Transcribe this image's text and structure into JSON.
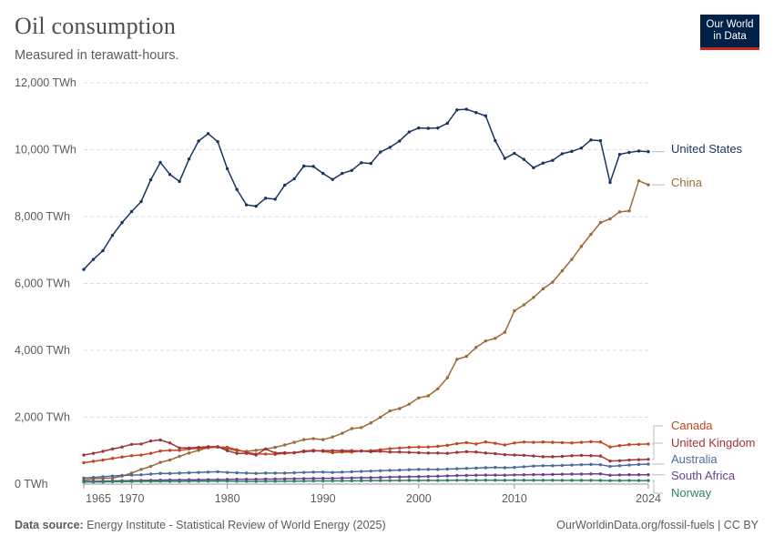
{
  "header": {
    "title": "Oil consumption",
    "subtitle": "Measured in terawatt-hours.",
    "logo_line1": "Our World",
    "logo_line2": "in Data"
  },
  "footer": {
    "source_label": "Data source:",
    "source_text": "Energy Institute - Statistical Review of World Energy (2025)",
    "url": "OurWorldinData.org/fossil-fuels | CC BY"
  },
  "chart_data": {
    "type": "line",
    "xlim": [
      1965,
      2024
    ],
    "ylim": [
      0,
      12000
    ],
    "x_ticks": [
      "1965",
      "1970",
      "1980",
      "1990",
      "2000",
      "2010",
      "2024"
    ],
    "y_ticks": [
      "0 TWh",
      "2,000 TWh",
      "4,000 TWh",
      "6,000 TWh",
      "8,000 TWh",
      "10,000 TWh",
      "12,000 TWh"
    ],
    "y_tick_values": [
      0,
      2000,
      4000,
      6000,
      8000,
      10000,
      12000
    ],
    "grid": true,
    "x": [
      1965,
      1966,
      1967,
      1968,
      1969,
      1970,
      1971,
      1972,
      1973,
      1974,
      1975,
      1976,
      1977,
      1978,
      1979,
      1980,
      1981,
      1982,
      1983,
      1984,
      1985,
      1986,
      1987,
      1988,
      1989,
      1990,
      1991,
      1992,
      1993,
      1994,
      1995,
      1996,
      1997,
      1998,
      1999,
      2000,
      2001,
      2002,
      2003,
      2004,
      2005,
      2006,
      2007,
      2008,
      2009,
      2010,
      2011,
      2012,
      2013,
      2014,
      2015,
      2016,
      2017,
      2018,
      2019,
      2020,
      2021,
      2022,
      2023,
      2024
    ],
    "series": [
      {
        "name": "United States",
        "color": "#18355e",
        "values": [
          6420,
          6720,
          6980,
          7440,
          7820,
          8150,
          8450,
          9100,
          9620,
          9260,
          9050,
          9720,
          10260,
          10480,
          10240,
          9430,
          8810,
          8350,
          8310,
          8550,
          8520,
          8940,
          9130,
          9510,
          9500,
          9290,
          9110,
          9290,
          9380,
          9610,
          9590,
          9930,
          10070,
          10260,
          10530,
          10650,
          10640,
          10650,
          10790,
          11190,
          11210,
          11110,
          11010,
          10270,
          9740,
          9890,
          9710,
          9460,
          9600,
          9680,
          9880,
          9950,
          10050,
          10290,
          10270,
          9020,
          9860,
          9920,
          9960,
          9940
        ]
      },
      {
        "name": "China",
        "color": "#9a6b35",
        "values": [
          120,
          160,
          170,
          180,
          240,
          330,
          440,
          530,
          650,
          720,
          830,
          930,
          1010,
          1090,
          1110,
          1060,
          1000,
          980,
          1010,
          1050,
          1100,
          1170,
          1250,
          1330,
          1360,
          1330,
          1410,
          1520,
          1660,
          1690,
          1830,
          2000,
          2190,
          2260,
          2390,
          2580,
          2640,
          2850,
          3180,
          3730,
          3820,
          4090,
          4280,
          4360,
          4540,
          5180,
          5360,
          5580,
          5840,
          6040,
          6380,
          6720,
          7110,
          7470,
          7820,
          7930,
          8140,
          8170,
          9070,
          8950
        ]
      },
      {
        "name": "Canada",
        "color": "#c2451e",
        "values": [
          640,
          680,
          720,
          770,
          810,
          850,
          870,
          920,
          990,
          1010,
          1010,
          1050,
          1070,
          1090,
          1110,
          1100,
          1030,
          950,
          900,
          900,
          890,
          920,
          940,
          990,
          1010,
          980,
          940,
          960,
          960,
          990,
          1000,
          1030,
          1060,
          1080,
          1100,
          1110,
          1110,
          1130,
          1160,
          1210,
          1240,
          1200,
          1260,
          1220,
          1170,
          1230,
          1260,
          1250,
          1260,
          1250,
          1240,
          1230,
          1250,
          1270,
          1260,
          1110,
          1150,
          1180,
          1190,
          1200
        ]
      },
      {
        "name": "United Kingdom",
        "color": "#a2323a",
        "values": [
          870,
          920,
          980,
          1050,
          1110,
          1190,
          1200,
          1290,
          1320,
          1230,
          1080,
          1080,
          1100,
          1120,
          1120,
          1000,
          920,
          920,
          870,
          1050,
          930,
          940,
          940,
          970,
          990,
          1000,
          1000,
          1000,
          1000,
          990,
          970,
          980,
          960,
          960,
          950,
          940,
          930,
          930,
          920,
          950,
          970,
          960,
          930,
          910,
          880,
          870,
          860,
          840,
          820,
          820,
          830,
          850,
          860,
          850,
          840,
          690,
          700,
          720,
          730,
          740
        ]
      },
      {
        "name": "Australia",
        "color": "#4c6a9c",
        "values": [
          180,
          200,
          220,
          240,
          260,
          270,
          280,
          300,
          320,
          320,
          330,
          340,
          350,
          360,
          370,
          350,
          340,
          330,
          320,
          330,
          330,
          330,
          340,
          350,
          360,
          360,
          350,
          360,
          370,
          380,
          390,
          400,
          410,
          420,
          430,
          440,
          440,
          440,
          450,
          460,
          470,
          480,
          490,
          500,
          490,
          500,
          520,
          540,
          550,
          550,
          560,
          570,
          580,
          590,
          580,
          530,
          550,
          570,
          590,
          600
        ]
      },
      {
        "name": "South Africa",
        "color": "#6d3e91",
        "values": [
          80,
          85,
          90,
          95,
          100,
          105,
          110,
          115,
          120,
          125,
          125,
          130,
          130,
          135,
          135,
          140,
          145,
          145,
          145,
          150,
          150,
          155,
          160,
          165,
          170,
          175,
          175,
          180,
          185,
          190,
          195,
          200,
          210,
          215,
          220,
          225,
          230,
          235,
          245,
          255,
          260,
          265,
          270,
          270,
          265,
          275,
          280,
          285,
          285,
          290,
          295,
          300,
          300,
          305,
          305,
          265,
          275,
          280,
          280,
          280
        ]
      },
      {
        "name": "Norway",
        "color": "#2c8465",
        "values": [
          60,
          63,
          66,
          70,
          74,
          78,
          80,
          82,
          86,
          82,
          82,
          86,
          88,
          90,
          92,
          90,
          86,
          84,
          82,
          84,
          86,
          90,
          90,
          92,
          94,
          94,
          96,
          98,
          100,
          102,
          104,
          106,
          108,
          110,
          112,
          110,
          112,
          110,
          112,
          114,
          115,
          116,
          118,
          116,
          114,
          118,
          116,
          115,
          114,
          114,
          112,
          112,
          112,
          112,
          110,
          104,
          106,
          108,
          106,
          106
        ]
      }
    ]
  }
}
